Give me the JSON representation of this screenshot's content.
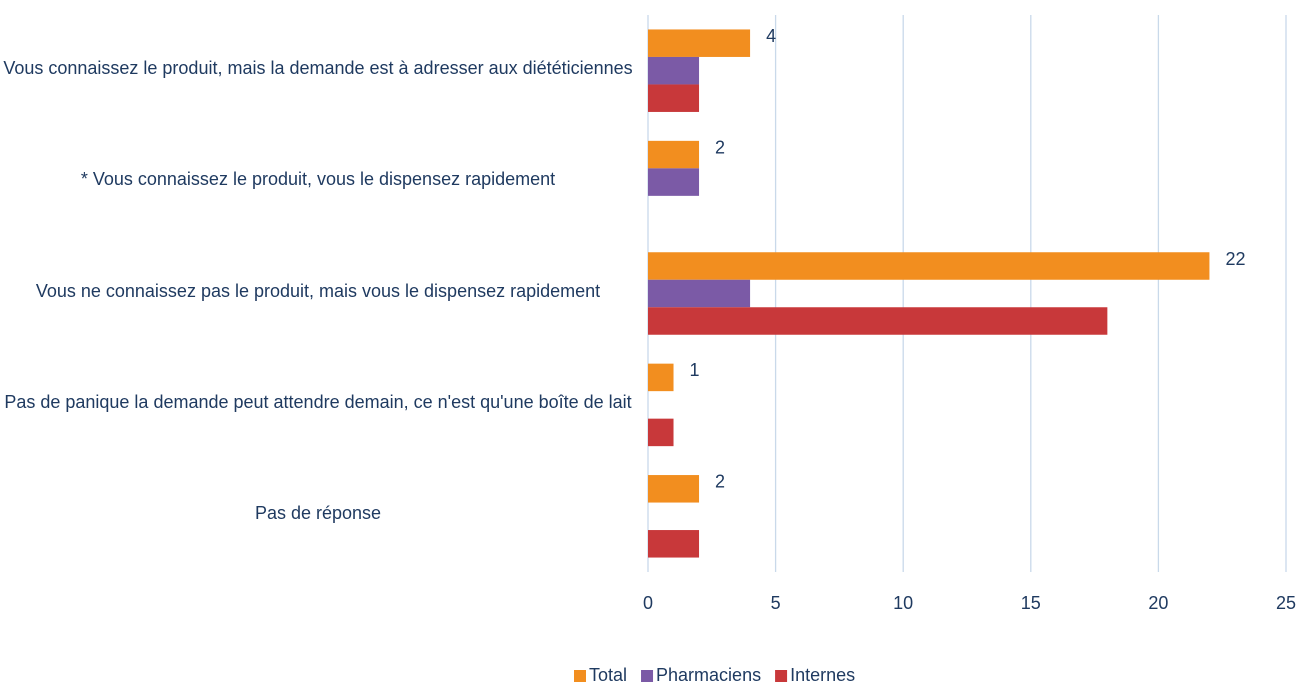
{
  "chart_data": {
    "type": "bar",
    "orientation": "horizontal",
    "categories": [
      "Vous connaissez le produit, mais la demande est à adresser aux diététiciennes",
      "*  Vous connaissez le produit, vous le dispensez rapidement",
      "Vous ne connaissez pas le produit, mais vous le dispensez rapidement",
      "Pas de panique la demande peut attendre demain, ce n'est qu'une boîte de lait",
      "Pas de réponse"
    ],
    "series": [
      {
        "name": "Total",
        "color": "#f28e1f",
        "values": [
          4,
          2,
          22,
          1,
          2
        ],
        "data_labels": true
      },
      {
        "name": "Pharmaciens",
        "color": "#7b5aa6",
        "values": [
          2,
          2,
          4,
          0,
          0
        ]
      },
      {
        "name": "Internes",
        "color": "#c8383a",
        "values": [
          2,
          0,
          18,
          1,
          2
        ]
      }
    ],
    "xlim": [
      0,
      25
    ],
    "xticks": [
      0,
      5,
      10,
      15,
      20,
      25
    ],
    "grid": true,
    "legend": "bottom"
  }
}
